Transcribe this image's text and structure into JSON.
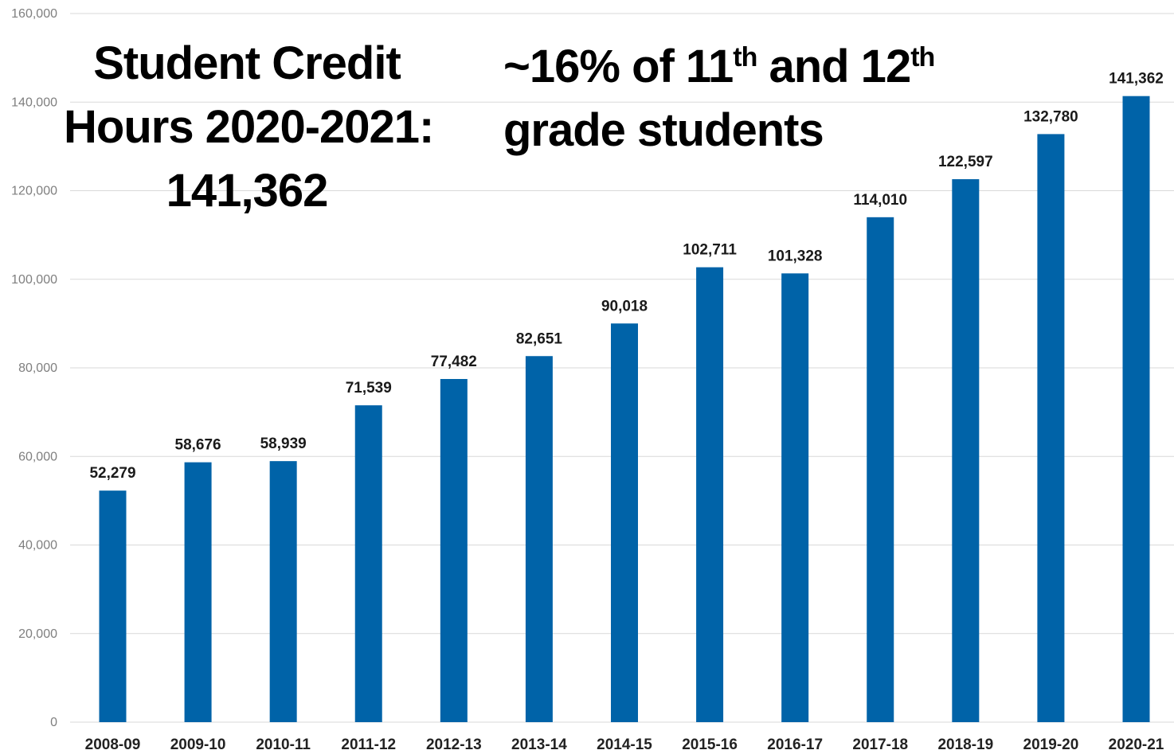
{
  "headline_left": {
    "line1": "Student Credit",
    "line2": "Hours 2020-2021:",
    "line3": "141,362"
  },
  "headline_right": {
    "line1_a": "~16% of 11",
    "line1_sup1": "th",
    "line1_b": " and 12",
    "line1_sup2": "th",
    "line2": "grade  students"
  },
  "chart_data": {
    "type": "bar",
    "categories": [
      "2008-09",
      "2009-10",
      "2010-11",
      "2011-12",
      "2012-13",
      "2013-14",
      "2014-15",
      "2015-16",
      "2016-17",
      "2017-18",
      "2018-19",
      "2019-20",
      "2020-21"
    ],
    "values": [
      52279,
      58676,
      58939,
      71539,
      77482,
      82651,
      90018,
      102711,
      101328,
      114010,
      122597,
      132780,
      141362
    ],
    "data_labels": [
      "52,279",
      "58,676",
      "58,939",
      "71,539",
      "77,482",
      "82,651",
      "90,018",
      "102,711",
      "101,328",
      "114,010",
      "122,597",
      "132,780",
      "141,362"
    ],
    "yticks": [
      0,
      20000,
      40000,
      60000,
      80000,
      100000,
      120000,
      140000,
      160000
    ],
    "ytick_labels": [
      "0",
      "20,000",
      "40,000",
      "60,000",
      "80,000",
      "100,000",
      "120,000",
      "140,000",
      "160,000"
    ],
    "ylim": [
      0,
      160000
    ],
    "grid": true,
    "legend": "none",
    "bar_color": "#0063a8"
  }
}
